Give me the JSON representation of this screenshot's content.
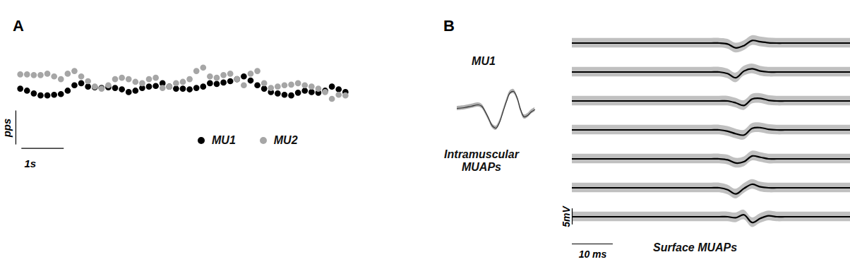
{
  "chart_data": [
    {
      "type": "scatter",
      "title": "A",
      "x": [
        0,
        0.16,
        0.32,
        0.48,
        0.64,
        0.8,
        0.96,
        1.12,
        1.28,
        1.44,
        1.6,
        1.76,
        1.92,
        2.08,
        2.24,
        2.4,
        2.56,
        2.72,
        2.88,
        3.04,
        3.2,
        3.36,
        3.52,
        3.68,
        3.84,
        4,
        4.16,
        4.32,
        4.48,
        4.64,
        4.8,
        4.96,
        5.12,
        5.28,
        5.44,
        5.6,
        5.76,
        5.92,
        6.08,
        6.24,
        6.4,
        6.56,
        6.72,
        6.88,
        7.04,
        7.2,
        7.36,
        7.52,
        7.68
      ],
      "series": [
        {
          "name": "MU1",
          "color": "#000000",
          "marker": "circle",
          "values": [
            13.0,
            12.7,
            12.3,
            12.0,
            12.0,
            12.1,
            12.2,
            12.7,
            13.5,
            13.8,
            13.3,
            13.2,
            13.1,
            13.2,
            13.1,
            12.9,
            12.5,
            12.7,
            13.1,
            13.3,
            13.4,
            13.8,
            13.3,
            13.0,
            13.0,
            12.9,
            13.1,
            13.3,
            13.8,
            13.7,
            13.9,
            14.1,
            14.4,
            14.8,
            14.2,
            13.5,
            13.0,
            12.5,
            12.3,
            12.1,
            12.0,
            12.4,
            12.7,
            12.5,
            12.4,
            12.7,
            13.3,
            12.9,
            12.5
          ]
        },
        {
          "name": "MU2",
          "color": "#a6a6a6",
          "marker": "circle",
          "values": [
            15.1,
            15.1,
            15.0,
            15.0,
            15.2,
            14.8,
            14.4,
            15.2,
            15.6,
            14.8,
            14.1,
            13.3,
            13.0,
            13.5,
            14.4,
            14.6,
            14.4,
            14.0,
            13.8,
            14.4,
            14.6,
            13.1,
            13.3,
            13.8,
            14.0,
            14.4,
            15.6,
            16.1,
            14.8,
            14.6,
            15.0,
            15.2,
            14.4,
            13.5,
            15.2,
            15.6,
            13.8,
            13.1,
            13.3,
            13.5,
            13.6,
            13.8,
            13.5,
            13.3,
            13.0,
            12.5,
            11.5,
            12.1,
            12.0
          ]
        }
      ],
      "xlim": [
        -0.47,
        8.2
      ],
      "ylim": [
        -13.6,
        26
      ],
      "tick_labels": false,
      "legend": "bottom",
      "scalebar": {
        "x": 1,
        "x_label": "1s",
        "y": 5,
        "y_label": "pps"
      }
    },
    {
      "type": "line",
      "title": "B",
      "subtitle": "MU1",
      "caption": "Intramuscular MUAPs",
      "x": [
        0,
        1,
        2,
        3,
        3.5,
        4,
        4.5,
        5,
        5.5,
        6,
        6.5,
        7,
        7.5,
        8,
        8.5,
        9,
        9.5,
        10,
        10.5,
        11
      ],
      "series": [
        {
          "color": "#333333",
          "values": [
            0,
            0.1,
            0.3,
            0.5,
            0.3,
            -0.5,
            -1.5,
            -2.5,
            -2.8,
            -2.0,
            -0.5,
            1.0,
            2.2,
            2.4,
            1.5,
            -0.2,
            -1.2,
            -1.0,
            -0.5,
            -0.2
          ]
        }
      ],
      "spread": 0.3,
      "xlim": [
        -1,
        12
      ],
      "ylim": [
        -5,
        5
      ],
      "tick_labels": false
    },
    {
      "type": "line",
      "caption": "Surface MUAPs",
      "x": [
        0,
        2,
        4,
        6,
        8,
        10,
        12,
        14,
        16,
        18,
        20,
        22,
        24,
        26,
        28,
        30,
        32,
        34,
        36,
        38,
        40,
        42,
        44,
        46,
        48,
        50,
        52,
        54,
        56,
        58,
        60,
        62,
        64,
        66,
        68
      ],
      "series": [
        {
          "color": "#000000",
          "values": [
            0,
            0,
            0,
            0,
            0,
            0,
            0,
            0,
            0,
            0,
            0,
            0,
            0,
            0,
            0,
            0,
            0,
            0,
            0,
            -0.3,
            -1.5,
            -0.8,
            0.8,
            0.4,
            0.1,
            0,
            0,
            0,
            0,
            0,
            0,
            0,
            0,
            0,
            0
          ]
        },
        {
          "color": "#000000",
          "values": [
            0,
            0,
            0,
            0,
            0,
            0,
            0,
            0,
            0,
            0,
            0,
            0,
            0,
            0,
            0,
            0,
            0,
            0,
            0,
            -0.5,
            -1.8,
            0.3,
            1.0,
            0.3,
            0,
            0,
            0,
            0,
            0,
            0,
            0,
            0,
            0,
            0,
            0
          ]
        },
        {
          "color": "#000000",
          "values": [
            0,
            0,
            0,
            0,
            0,
            0,
            0,
            0,
            0,
            0,
            0,
            0,
            0,
            0,
            0,
            0,
            0,
            0,
            0,
            0,
            -0.6,
            -1.4,
            0.6,
            0.8,
            0.2,
            0,
            0,
            0,
            0,
            0,
            0,
            0,
            0,
            0,
            0
          ]
        },
        {
          "color": "#000000",
          "values": [
            0,
            0,
            0,
            0,
            0,
            0,
            0,
            0,
            0,
            0,
            0,
            0,
            0,
            0,
            0,
            0,
            0,
            0,
            0,
            -0.4,
            -1.2,
            -1.6,
            0.5,
            0.7,
            0.2,
            0,
            0,
            0,
            0,
            0,
            0,
            0,
            0,
            0,
            0
          ]
        },
        {
          "color": "#000000",
          "values": [
            0,
            0,
            0,
            0,
            0,
            0,
            0,
            0,
            0,
            0,
            0,
            0,
            0,
            0,
            0,
            0,
            0,
            0,
            0,
            -0.3,
            -1.3,
            -0.9,
            0.9,
            0.5,
            0,
            0,
            0,
            0,
            0,
            0,
            0,
            0,
            0,
            0,
            0
          ]
        },
        {
          "color": "#000000",
          "values": [
            0,
            0,
            0,
            0,
            0,
            0,
            0,
            0,
            0,
            0,
            0,
            0,
            0,
            0,
            0,
            0,
            0,
            0,
            0,
            -0.6,
            -1.9,
            -0.2,
            1.1,
            0.3,
            0,
            0,
            0,
            0,
            0,
            0,
            0,
            0,
            0,
            0,
            0
          ]
        },
        {
          "color": "#000000",
          "values": [
            0,
            0,
            0,
            0,
            0,
            0,
            0,
            0,
            0,
            0,
            0,
            0,
            0,
            0,
            0,
            0,
            0,
            0,
            0,
            0,
            -0.3,
            0.6,
            -1.8,
            -0.5,
            0.3,
            0,
            0,
            0,
            0,
            0,
            0,
            0,
            0,
            0,
            0
          ]
        }
      ],
      "spread": 1.5,
      "xlim": [
        0,
        68
      ],
      "ylim": [
        -4.5,
        4.5
      ],
      "tick_labels": false,
      "scalebar": {
        "x": 10,
        "x_label": "10 ms",
        "y": 5,
        "y_label": "5mV"
      }
    }
  ]
}
